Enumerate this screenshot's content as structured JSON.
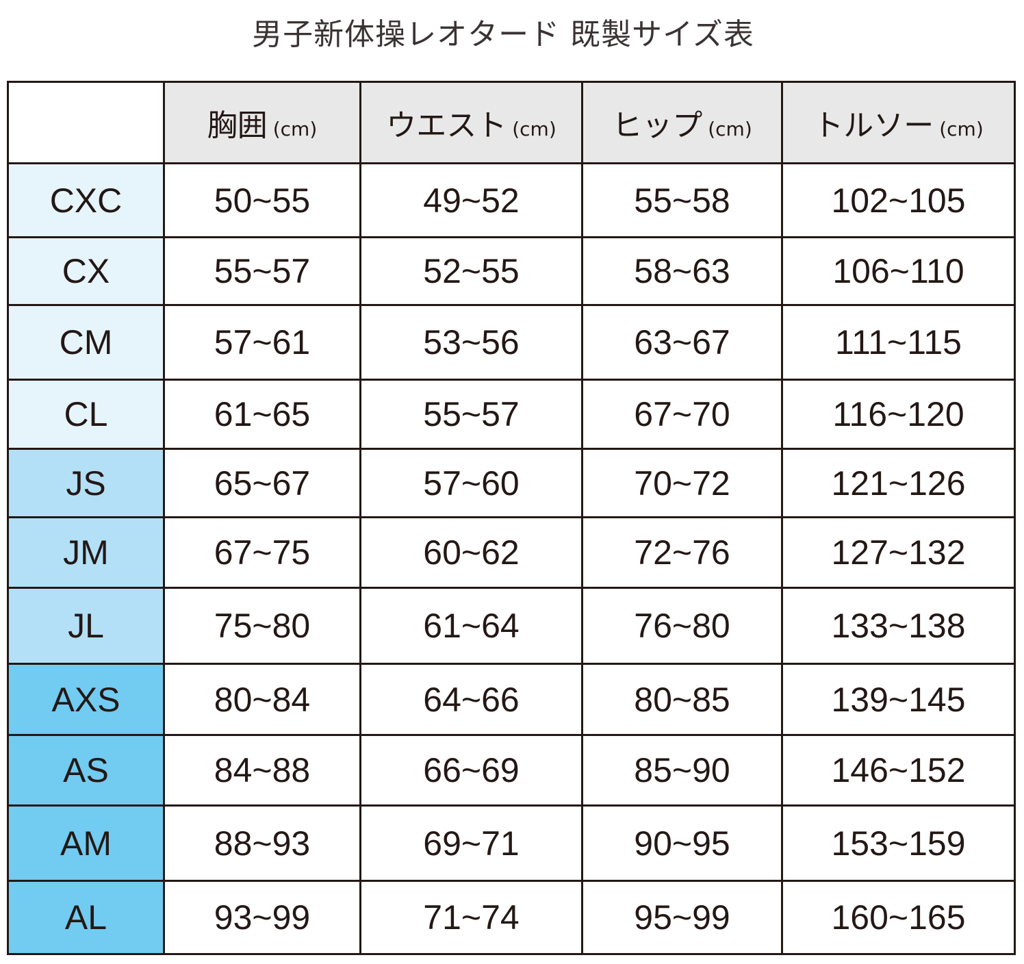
{
  "title": "男子新体操レオタード 既製サイズ表",
  "colors": {
    "child": "#e6f4fc",
    "junior": "#b3e0f7",
    "adult": "#72cbf1",
    "header": "#e8e8e8",
    "border": "#231815"
  },
  "columns": [
    {
      "label": "胸囲",
      "unit": "(cm)"
    },
    {
      "label": "ウエスト",
      "unit": "(cm)"
    },
    {
      "label": "ヒップ",
      "unit": "(cm)"
    },
    {
      "label": "トルソー",
      "unit": "(cm)"
    }
  ],
  "rows": [
    {
      "size": "CXC",
      "values": [
        "50~55",
        "49~52",
        "55~58",
        "102~105"
      ]
    },
    {
      "size": "CX",
      "values": [
        "55~57",
        "52~55",
        "58~63",
        "106~110"
      ]
    },
    {
      "size": "CM",
      "values": [
        "57~61",
        "53~56",
        "63~67",
        "111~115"
      ]
    },
    {
      "size": "CL",
      "values": [
        "61~65",
        "55~57",
        "67~70",
        "116~120"
      ]
    },
    {
      "size": "JS",
      "values": [
        "65~67",
        "57~60",
        "70~72",
        "121~126"
      ]
    },
    {
      "size": "JM",
      "values": [
        "67~75",
        "60~62",
        "72~76",
        "127~132"
      ]
    },
    {
      "size": "JL",
      "values": [
        "75~80",
        "61~64",
        "76~80",
        "133~138"
      ]
    },
    {
      "size": "AXS",
      "values": [
        "80~84",
        "64~66",
        "80~85",
        "139~145"
      ]
    },
    {
      "size": "AS",
      "values": [
        "84~88",
        "66~69",
        "85~90",
        "146~152"
      ]
    },
    {
      "size": "AM",
      "values": [
        "88~93",
        "69~71",
        "90~95",
        "153~159"
      ]
    },
    {
      "size": "AL",
      "values": [
        "93~99",
        "71~74",
        "95~99",
        "160~165"
      ]
    }
  ]
}
